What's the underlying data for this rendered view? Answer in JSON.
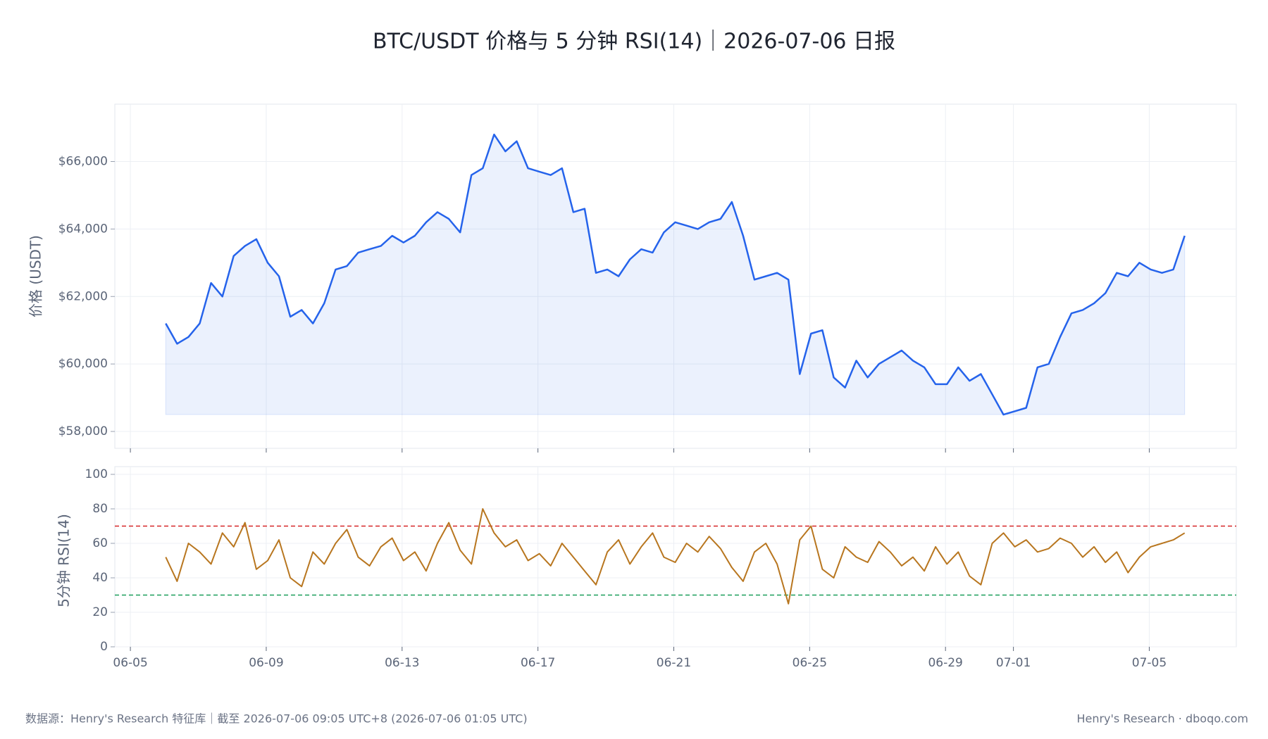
{
  "title": "BTC/USDT 价格与 5 分钟 RSI(14)｜2026-07-06 日报",
  "footer": {
    "left": "数据源：Henry's Research 特征库｜截至 2026-07-06 09:05 UTC+8 (2026-07-06 01:05 UTC)",
    "right": "Henry's Research · dboqo.com"
  },
  "chart_data": [
    {
      "type": "line",
      "area": true,
      "ylabel": "价格 (USDT)",
      "color": "#2563eb",
      "grid": true,
      "x": [
        "2026-06-06T01:00",
        "2026-06-06T09:00",
        "2026-06-06T17:00",
        "2026-06-07T01:00",
        "2026-06-07T09:00",
        "2026-06-07T17:00",
        "2026-06-08T01:00",
        "2026-06-08T09:00",
        "2026-06-08T17:00",
        "2026-06-09T01:00",
        "2026-06-09T09:00",
        "2026-06-09T17:00",
        "2026-06-10T01:00",
        "2026-06-10T09:00",
        "2026-06-10T17:00",
        "2026-06-11T01:00",
        "2026-06-11T09:00",
        "2026-06-11T17:00",
        "2026-06-12T01:00",
        "2026-06-12T09:00",
        "2026-06-12T17:00",
        "2026-06-13T01:00",
        "2026-06-13T09:00",
        "2026-06-13T17:00",
        "2026-06-14T01:00",
        "2026-06-14T09:00",
        "2026-06-14T17:00",
        "2026-06-15T01:00",
        "2026-06-15T09:00",
        "2026-06-15T17:00",
        "2026-06-16T01:00",
        "2026-06-16T09:00",
        "2026-06-16T17:00",
        "2026-06-17T01:00",
        "2026-06-17T09:00",
        "2026-06-17T17:00",
        "2026-06-18T01:00",
        "2026-06-18T09:00",
        "2026-06-18T17:00",
        "2026-06-19T01:00",
        "2026-06-19T09:00",
        "2026-06-19T17:00",
        "2026-06-20T01:00",
        "2026-06-20T09:00",
        "2026-06-20T17:00",
        "2026-06-21T01:00",
        "2026-06-21T09:00",
        "2026-06-21T17:00",
        "2026-06-22T01:00",
        "2026-06-22T09:00",
        "2026-06-22T17:00",
        "2026-06-23T01:00",
        "2026-06-23T09:00",
        "2026-06-23T17:00",
        "2026-06-24T01:00",
        "2026-06-24T09:00",
        "2026-06-24T17:00",
        "2026-06-25T01:00",
        "2026-06-25T09:00",
        "2026-06-25T17:00",
        "2026-06-26T01:00",
        "2026-06-26T09:00",
        "2026-06-26T17:00",
        "2026-06-27T01:00",
        "2026-06-27T09:00",
        "2026-06-27T17:00",
        "2026-06-28T01:00",
        "2026-06-28T09:00",
        "2026-06-28T17:00",
        "2026-06-29T01:00",
        "2026-06-29T09:00",
        "2026-06-29T17:00",
        "2026-06-30T01:00",
        "2026-06-30T09:00",
        "2026-06-30T17:00",
        "2026-07-01T01:00",
        "2026-07-01T09:00",
        "2026-07-01T17:00",
        "2026-07-02T01:00",
        "2026-07-02T09:00",
        "2026-07-02T17:00",
        "2026-07-03T01:00",
        "2026-07-03T09:00",
        "2026-07-03T17:00",
        "2026-07-04T01:00",
        "2026-07-04T09:00",
        "2026-07-04T17:00",
        "2026-07-05T01:00",
        "2026-07-05T09:00",
        "2026-07-05T17:00",
        "2026-07-06T01:00"
      ],
      "values": [
        61200,
        60600,
        60800,
        61200,
        62400,
        62000,
        63200,
        63500,
        63700,
        63000,
        62600,
        61400,
        61600,
        61200,
        61800,
        62800,
        62900,
        63300,
        63400,
        63500,
        63800,
        63600,
        63800,
        64200,
        64500,
        64300,
        63900,
        65600,
        65800,
        66800,
        66300,
        66600,
        65800,
        65700,
        65600,
        65800,
        64500,
        64600,
        62700,
        62800,
        62600,
        63100,
        63400,
        63300,
        63900,
        64200,
        64100,
        64000,
        64200,
        64300,
        64800,
        63800,
        62500,
        62600,
        62700,
        62500,
        59700,
        60900,
        61000,
        59600,
        59300,
        60100,
        59600,
        60000,
        60200,
        60400,
        60100,
        59900,
        59400,
        59400,
        59900,
        59500,
        59700,
        59100,
        58500,
        58600,
        58700,
        59900,
        60000,
        60800,
        61500,
        61600,
        61800,
        62100,
        62700,
        62600,
        63000,
        62800,
        62700,
        62800,
        63800
      ],
      "xlim": [
        "2026-06-04T13:00",
        "2026-07-07T13:30"
      ],
      "xticks": [
        {
          "value": "2026-06-05",
          "label": "06-05"
        },
        {
          "value": "2026-06-09",
          "label": "06-09"
        },
        {
          "value": "2026-06-13",
          "label": "06-13"
        },
        {
          "value": "2026-06-17",
          "label": "06-17"
        },
        {
          "value": "2026-06-21",
          "label": "06-21"
        },
        {
          "value": "2026-06-25",
          "label": "06-25"
        },
        {
          "value": "2026-06-29",
          "label": "06-29"
        },
        {
          "value": "2026-07-01",
          "label": "07-01"
        },
        {
          "value": "2026-07-05",
          "label": "07-05"
        }
      ],
      "ylim": [
        57500,
        67700
      ],
      "yticks": [
        {
          "value": 58000,
          "label": "$58,000"
        },
        {
          "value": 60000,
          "label": "$60,000"
        },
        {
          "value": 62000,
          "label": "$62,000"
        },
        {
          "value": 64000,
          "label": "$64,000"
        },
        {
          "value": 66000,
          "label": "$66,000"
        }
      ]
    },
    {
      "type": "line",
      "ylabel": "5分钟 RSI(14)",
      "color": "#b8761f",
      "grid": true,
      "x": [
        "2026-06-06T01:00",
        "2026-06-06T09:00",
        "2026-06-06T17:00",
        "2026-06-07T01:00",
        "2026-06-07T09:00",
        "2026-06-07T17:00",
        "2026-06-08T01:00",
        "2026-06-08T09:00",
        "2026-06-08T17:00",
        "2026-06-09T01:00",
        "2026-06-09T09:00",
        "2026-06-09T17:00",
        "2026-06-10T01:00",
        "2026-06-10T09:00",
        "2026-06-10T17:00",
        "2026-06-11T01:00",
        "2026-06-11T09:00",
        "2026-06-11T17:00",
        "2026-06-12T01:00",
        "2026-06-12T09:00",
        "2026-06-12T17:00",
        "2026-06-13T01:00",
        "2026-06-13T09:00",
        "2026-06-13T17:00",
        "2026-06-14T01:00",
        "2026-06-14T09:00",
        "2026-06-14T17:00",
        "2026-06-15T01:00",
        "2026-06-15T09:00",
        "2026-06-15T17:00",
        "2026-06-16T01:00",
        "2026-06-16T09:00",
        "2026-06-16T17:00",
        "2026-06-17T01:00",
        "2026-06-17T09:00",
        "2026-06-17T17:00",
        "2026-06-18T01:00",
        "2026-06-18T09:00",
        "2026-06-18T17:00",
        "2026-06-19T01:00",
        "2026-06-19T09:00",
        "2026-06-19T17:00",
        "2026-06-20T01:00",
        "2026-06-20T09:00",
        "2026-06-20T17:00",
        "2026-06-21T01:00",
        "2026-06-21T09:00",
        "2026-06-21T17:00",
        "2026-06-22T01:00",
        "2026-06-22T09:00",
        "2026-06-22T17:00",
        "2026-06-23T01:00",
        "2026-06-23T09:00",
        "2026-06-23T17:00",
        "2026-06-24T01:00",
        "2026-06-24T09:00",
        "2026-06-24T17:00",
        "2026-06-25T01:00",
        "2026-06-25T09:00",
        "2026-06-25T17:00",
        "2026-06-26T01:00",
        "2026-06-26T09:00",
        "2026-06-26T17:00",
        "2026-06-27T01:00",
        "2026-06-27T09:00",
        "2026-06-27T17:00",
        "2026-06-28T01:00",
        "2026-06-28T09:00",
        "2026-06-28T17:00",
        "2026-06-29T01:00",
        "2026-06-29T09:00",
        "2026-06-29T17:00",
        "2026-06-30T01:00",
        "2026-06-30T09:00",
        "2026-06-30T17:00",
        "2026-07-01T01:00",
        "2026-07-01T09:00",
        "2026-07-01T17:00",
        "2026-07-02T01:00",
        "2026-07-02T09:00",
        "2026-07-02T17:00",
        "2026-07-03T01:00",
        "2026-07-03T09:00",
        "2026-07-03T17:00",
        "2026-07-04T01:00",
        "2026-07-04T09:00",
        "2026-07-04T17:00",
        "2026-07-05T01:00",
        "2026-07-05T09:00",
        "2026-07-05T17:00",
        "2026-07-06T01:00"
      ],
      "values": [
        52,
        38,
        60,
        55,
        48,
        66,
        58,
        72,
        45,
        50,
        62,
        40,
        35,
        55,
        48,
        60,
        68,
        52,
        47,
        58,
        63,
        50,
        55,
        44,
        60,
        72,
        56,
        48,
        80,
        66,
        58,
        62,
        50,
        54,
        47,
        60,
        52,
        44,
        36,
        55,
        62,
        48,
        58,
        66,
        52,
        49,
        60,
        55,
        64,
        57,
        46,
        38,
        55,
        60,
        48,
        25,
        62,
        70,
        45,
        40,
        58,
        52,
        49,
        61,
        55,
        47,
        52,
        44,
        58,
        48,
        55,
        41,
        36,
        60,
        66,
        58,
        62,
        55,
        57,
        63,
        60,
        52,
        58,
        49,
        55,
        43,
        52,
        58,
        60,
        62,
        66
      ],
      "hlines": [
        {
          "value": 70,
          "color": "#d62728"
        },
        {
          "value": 30,
          "color": "#1a9e5a"
        }
      ],
      "xlim": [
        "2026-06-04T13:00",
        "2026-07-07T13:30"
      ],
      "xticks": [
        {
          "value": "2026-06-05",
          "label": "06-05"
        },
        {
          "value": "2026-06-09",
          "label": "06-09"
        },
        {
          "value": "2026-06-13",
          "label": "06-13"
        },
        {
          "value": "2026-06-17",
          "label": "06-17"
        },
        {
          "value": "2026-06-21",
          "label": "06-21"
        },
        {
          "value": "2026-06-25",
          "label": "06-25"
        },
        {
          "value": "2026-06-29",
          "label": "06-29"
        },
        {
          "value": "2026-07-01",
          "label": "07-01"
        },
        {
          "value": "2026-07-05",
          "label": "07-05"
        }
      ],
      "ylim": [
        0,
        100
      ],
      "yticks": [
        0,
        20,
        40,
        60,
        80,
        100
      ]
    }
  ]
}
